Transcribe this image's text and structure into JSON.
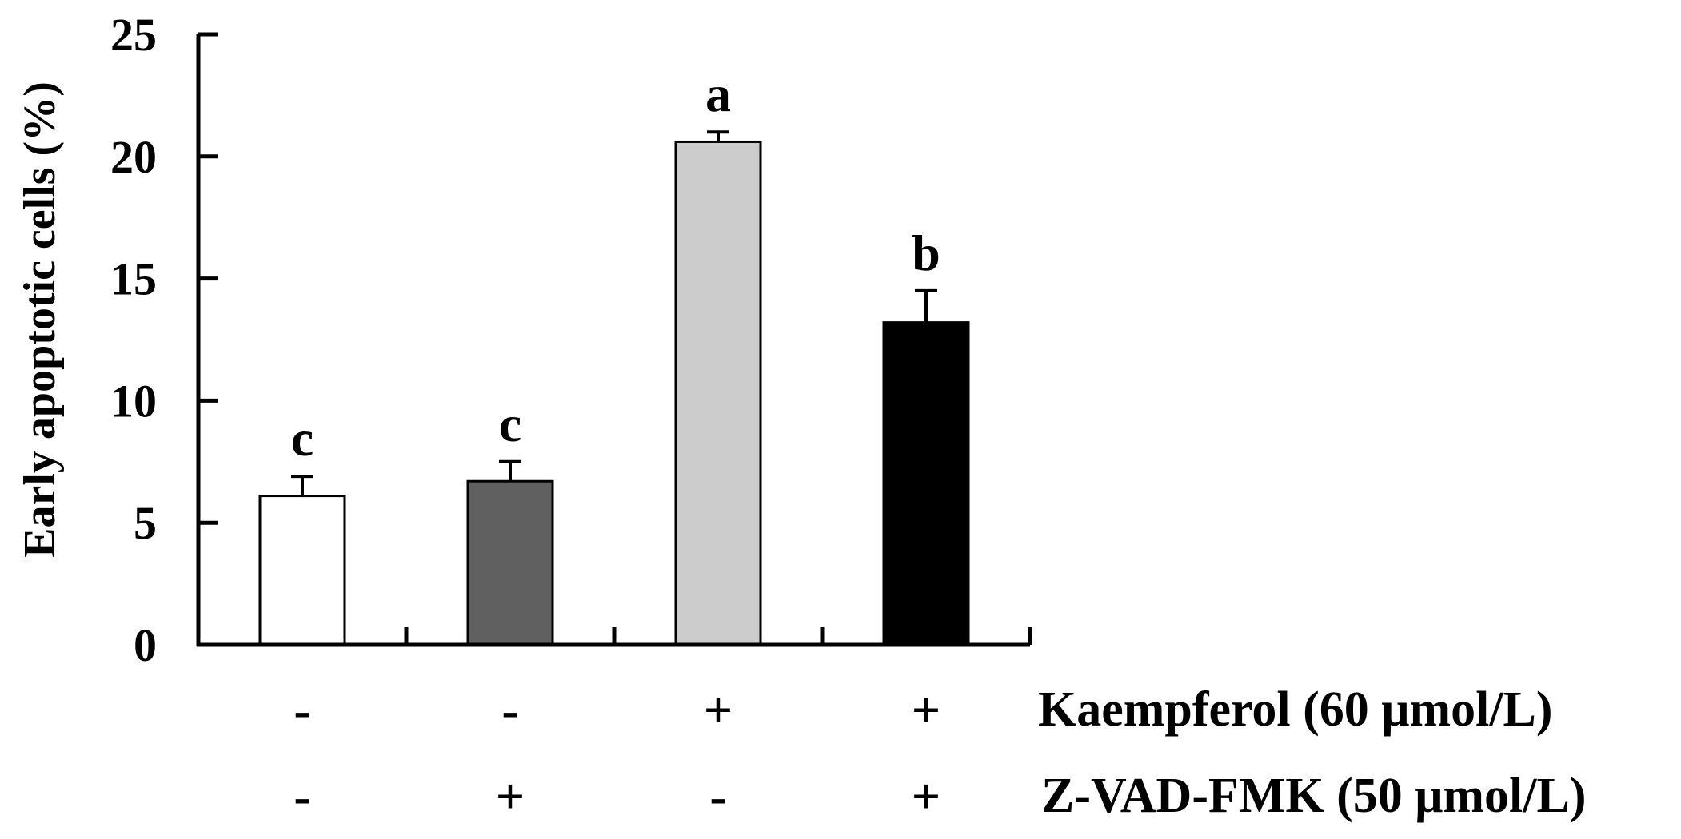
{
  "chart_data": {
    "type": "bar",
    "ylabel": "Early apoptotic cells (%)",
    "ylim": [
      0,
      25
    ],
    "yticks": [
      "0",
      "5",
      "10",
      "15",
      "20",
      "25"
    ],
    "grid": false,
    "categories": [
      "-/-",
      "-/+",
      "+/-",
      "+/+"
    ],
    "values": [
      6.1,
      6.7,
      20.6,
      13.2
    ],
    "errors": [
      0.8,
      0.8,
      0.4,
      1.3
    ],
    "significance": [
      "c",
      "c",
      "a",
      "b"
    ],
    "bar_colors": [
      "#ffffff",
      "#606060",
      "#cccccc",
      "#000000"
    ],
    "treatments": [
      {
        "label": "Kaempferol (60 μmol/L)",
        "signs": [
          "-",
          "-",
          "+",
          "+"
        ]
      },
      {
        "label": "Z-VAD-FMK (50 μmol/L)",
        "signs": [
          "-",
          "+",
          "-",
          "+"
        ]
      }
    ]
  }
}
